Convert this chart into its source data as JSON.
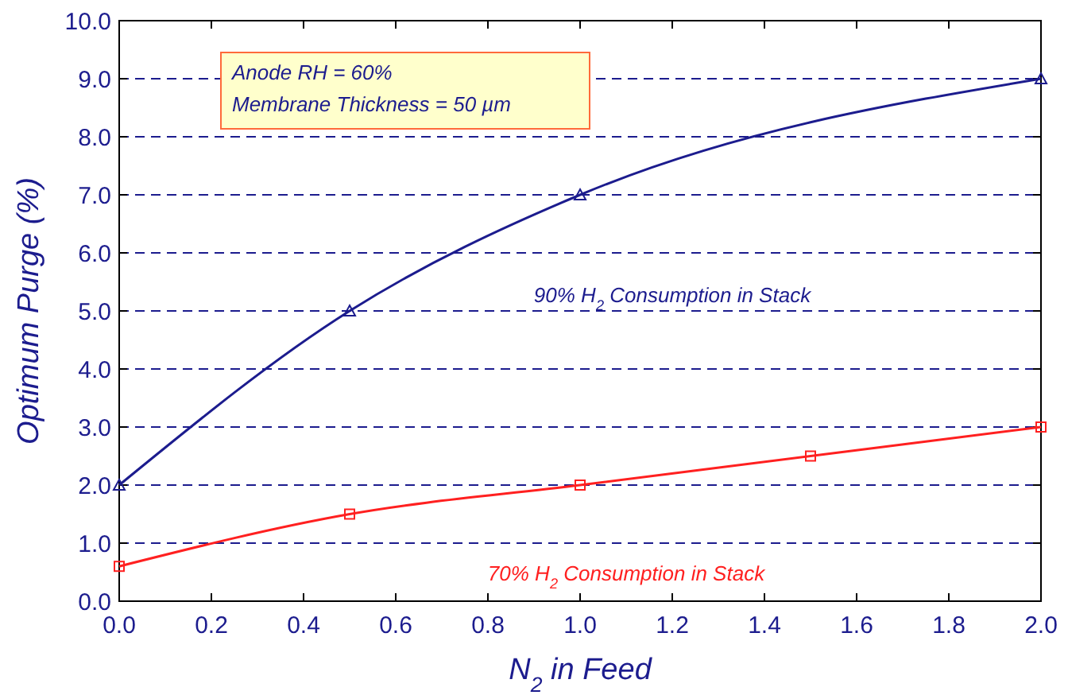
{
  "chart_data": {
    "type": "line",
    "xlabel": "N$_{2}$ in Feed",
    "ylabel": "Optimum Purge (%)",
    "series": [
      {
        "name": "90% H$_{2}$ Consumption in Stack",
        "color": "#1c1c8e",
        "marker": "triangle",
        "x": [
          0,
          0.5,
          1.0,
          2.0
        ],
        "values": [
          2.0,
          5.0,
          7.0,
          9.0
        ]
      },
      {
        "name": "70% H$_{2}$ Consumption in Stack",
        "color": "#ff2020",
        "marker": "square",
        "x": [
          0,
          0.5,
          1.0,
          1.5,
          2.0
        ],
        "values": [
          0.6,
          1.5,
          2.0,
          2.5,
          3.0
        ]
      }
    ],
    "annotations": [
      "Anode RH = 60%",
      "Membrane Thickness = 50 µm"
    ],
    "xlim": [
      0,
      2.0
    ],
    "ylim": [
      0,
      10.0
    ],
    "xticks": [
      {
        "value": 0,
        "label": "0.0"
      },
      {
        "value": 0.2,
        "label": "0.2"
      },
      {
        "value": 0.4,
        "label": "0.4"
      },
      {
        "value": 0.6,
        "label": "0.6"
      },
      {
        "value": 0.8,
        "label": "0.8"
      },
      {
        "value": 1.0,
        "label": "1.0"
      },
      {
        "value": 1.2,
        "label": "1.2"
      },
      {
        "value": 1.4,
        "label": "1.4"
      },
      {
        "value": 1.6,
        "label": "1.6"
      },
      {
        "value": 1.8,
        "label": "1.8"
      },
      {
        "value": 2.0,
        "label": "2.0"
      }
    ],
    "yticks": [
      {
        "value": 0,
        "label": "0.0"
      },
      {
        "value": 1,
        "label": "1.0"
      },
      {
        "value": 2,
        "label": "2.0"
      },
      {
        "value": 3,
        "label": "3.0"
      },
      {
        "value": 4,
        "label": "4.0"
      },
      {
        "value": 5,
        "label": "5.0"
      },
      {
        "value": 6,
        "label": "6.0"
      },
      {
        "value": 7,
        "label": "7.0"
      },
      {
        "value": 8,
        "label": "8.0"
      },
      {
        "value": 9,
        "label": "9.0"
      },
      {
        "value": 10,
        "label": "10.0"
      }
    ],
    "grid": "y",
    "line_style": "solid"
  }
}
